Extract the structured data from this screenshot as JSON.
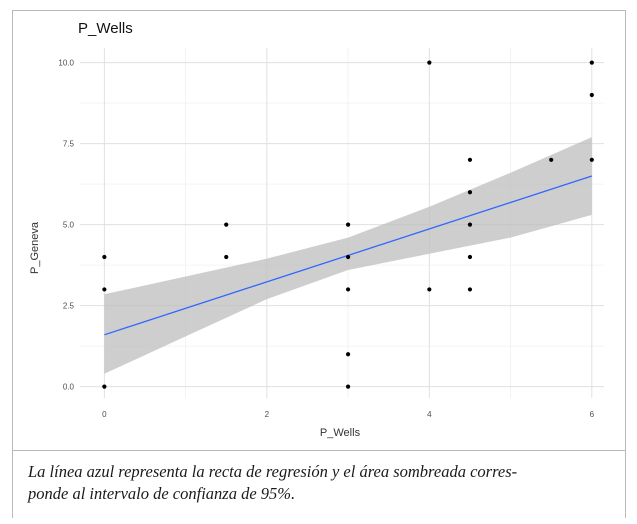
{
  "chart_data": {
    "type": "scatter",
    "title": "P_Wells",
    "xlabel": "P_Wells",
    "ylabel": "P_Geneva",
    "xlim": [
      -0.3,
      6.15
    ],
    "ylim": [
      -0.35,
      10.45
    ],
    "x_ticks": [
      0,
      2,
      4,
      6
    ],
    "y_ticks": [
      0.0,
      2.5,
      5.0,
      7.5,
      10.0
    ],
    "x_tick_labels": [
      "0",
      "2",
      "4",
      "6"
    ],
    "y_tick_labels": [
      "0.0",
      "2.5",
      "5.0",
      "7.5",
      "10.0"
    ],
    "grid": true,
    "points": [
      {
        "x": 0,
        "y": 4
      },
      {
        "x": 0,
        "y": 3
      },
      {
        "x": 0,
        "y": 0
      },
      {
        "x": 1.5,
        "y": 5
      },
      {
        "x": 1.5,
        "y": 4
      },
      {
        "x": 3,
        "y": 5
      },
      {
        "x": 3,
        "y": 4
      },
      {
        "x": 3,
        "y": 3
      },
      {
        "x": 3,
        "y": 1
      },
      {
        "x": 3,
        "y": 0
      },
      {
        "x": 4,
        "y": 10
      },
      {
        "x": 4,
        "y": 3
      },
      {
        "x": 4.5,
        "y": 7
      },
      {
        "x": 4.5,
        "y": 6
      },
      {
        "x": 4.5,
        "y": 5
      },
      {
        "x": 4.5,
        "y": 4
      },
      {
        "x": 4.5,
        "y": 3
      },
      {
        "x": 5.5,
        "y": 7
      },
      {
        "x": 6,
        "y": 10
      },
      {
        "x": 6,
        "y": 9
      },
      {
        "x": 6,
        "y": 7
      }
    ],
    "regression": {
      "x": [
        0,
        6
      ],
      "y": [
        1.6,
        6.5
      ],
      "band": [
        {
          "x": 0,
          "lo": 0.4,
          "hi": 2.85
        },
        {
          "x": 1,
          "lo": 1.55,
          "hi": 3.4
        },
        {
          "x": 2,
          "lo": 2.7,
          "hi": 3.95
        },
        {
          "x": 3,
          "lo": 3.6,
          "hi": 4.6
        },
        {
          "x": 4,
          "lo": 4.1,
          "hi": 5.55
        },
        {
          "x": 5,
          "lo": 4.6,
          "hi": 6.6
        },
        {
          "x": 6,
          "lo": 5.3,
          "hi": 7.7
        }
      ]
    },
    "colors": {
      "points": "#000000",
      "line": "#3366ff",
      "band": "#bdbdbd",
      "grid_major": "#e0e0e0",
      "grid_minor": "#f0f0f0"
    }
  },
  "caption": {
    "line1": "La línea azul representa la recta de regresión y el área sombreada corres-",
    "line2": "ponde al intervalo de confianza de 95%."
  }
}
